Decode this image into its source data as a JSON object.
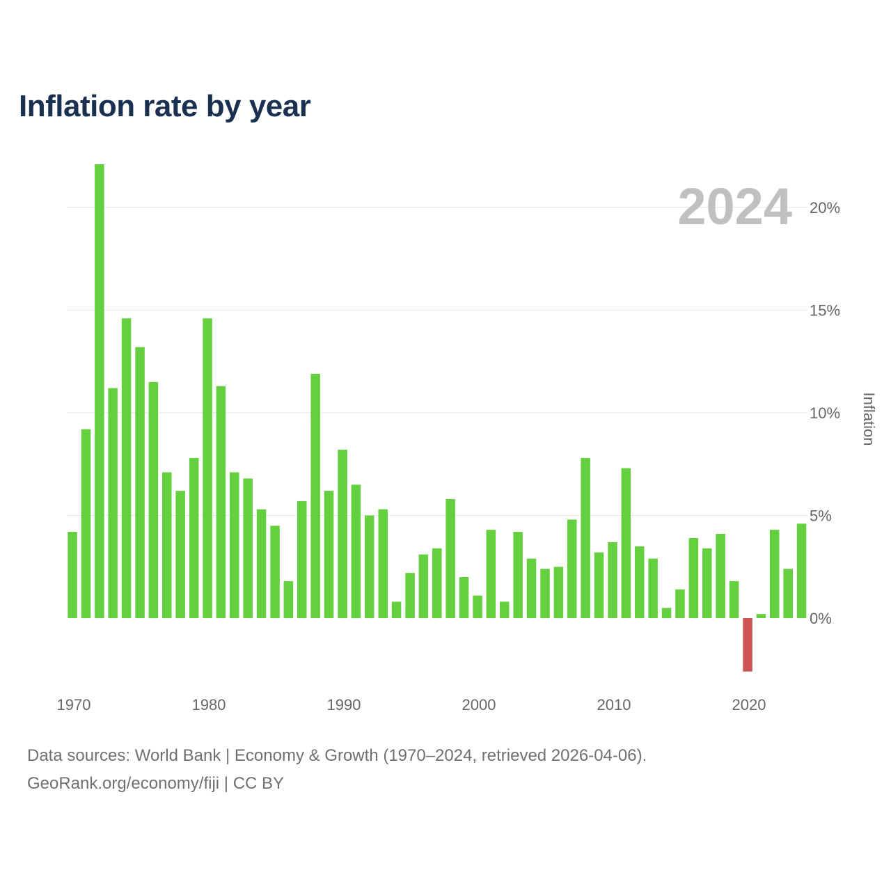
{
  "chart_data": {
    "type": "bar",
    "title": "Inflation rate by year",
    "year_label": "2024",
    "ylabel": "Inflation",
    "xlabel": "",
    "ylim": [
      -3.0,
      22.0
    ],
    "y_ticks": [
      0,
      5,
      10,
      15,
      20
    ],
    "y_tick_labels": [
      "0%",
      "5%",
      "10%",
      "15%",
      "20%"
    ],
    "x_ticks": [
      1970,
      1980,
      1990,
      2000,
      2010,
      2020
    ],
    "x_tick_labels": [
      "1970",
      "1980",
      "1990",
      "2000",
      "2010",
      "2020"
    ],
    "positive_color": "#65d03f",
    "negative_color": "#cc5555",
    "categories": [
      1970,
      1971,
      1972,
      1973,
      1974,
      1975,
      1976,
      1977,
      1978,
      1979,
      1980,
      1981,
      1982,
      1983,
      1984,
      1985,
      1986,
      1987,
      1988,
      1989,
      1990,
      1991,
      1992,
      1993,
      1994,
      1995,
      1996,
      1997,
      1998,
      1999,
      2000,
      2001,
      2002,
      2003,
      2004,
      2005,
      2006,
      2007,
      2008,
      2009,
      2010,
      2011,
      2012,
      2013,
      2014,
      2015,
      2016,
      2017,
      2018,
      2019,
      2020,
      2021,
      2022,
      2023,
      2024
    ],
    "values": [
      4.2,
      9.2,
      22.1,
      11.2,
      14.6,
      13.2,
      11.5,
      7.1,
      6.2,
      7.8,
      14.6,
      11.3,
      7.1,
      6.8,
      5.3,
      4.5,
      1.8,
      5.7,
      11.9,
      6.2,
      8.2,
      6.5,
      5.0,
      5.3,
      0.8,
      2.2,
      3.1,
      3.4,
      5.8,
      2.0,
      1.1,
      4.3,
      0.8,
      4.2,
      2.9,
      2.4,
      2.5,
      4.8,
      7.8,
      3.2,
      3.7,
      7.3,
      3.5,
      2.9,
      0.5,
      1.4,
      3.9,
      3.4,
      4.1,
      1.8,
      -2.6,
      0.2,
      4.3,
      2.4,
      4.6
    ]
  },
  "footer": {
    "line1": "Data sources: World Bank | Economy & Growth (1970–2024, retrieved 2026-04-06).",
    "line2": "GeoRank.org/economy/fiji | CC BY"
  }
}
